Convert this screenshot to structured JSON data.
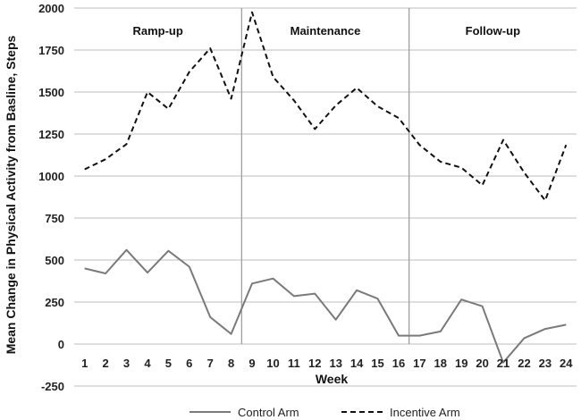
{
  "chart_data": {
    "type": "line",
    "ylabel": "Mean Change in Physical Activity from Basline, Steps",
    "xlabel": "Week",
    "ylim": [
      -250,
      2000
    ],
    "yticks": [
      -250,
      0,
      250,
      500,
      750,
      1000,
      1250,
      1500,
      1750,
      2000
    ],
    "grid": true,
    "legend": "bottom",
    "x": [
      1,
      2,
      3,
      4,
      5,
      6,
      7,
      8,
      9,
      10,
      11,
      12,
      13,
      14,
      15,
      16,
      17,
      18,
      19,
      20,
      21,
      22,
      23,
      24
    ],
    "phases": [
      {
        "label": "Ramp-up",
        "start": 0.5,
        "end": 8.5
      },
      {
        "label": "Maintenance",
        "start": 8.5,
        "end": 16.5
      },
      {
        "label": "Follow-up",
        "start": 16.5,
        "end": 24.5
      }
    ],
    "dividers": [
      8.5,
      16.5
    ],
    "series": [
      {
        "name": "Control Arm",
        "style": "solid",
        "color": "#7a7a7a",
        "values": [
          450,
          420,
          560,
          425,
          555,
          460,
          160,
          60,
          360,
          390,
          285,
          300,
          145,
          320,
          270,
          50,
          50,
          75,
          265,
          225,
          -110,
          35,
          90,
          115
        ]
      },
      {
        "name": "Incentive Arm",
        "style": "dashed",
        "color": "#111111",
        "values": [
          1040,
          1100,
          1190,
          1500,
          1400,
          1620,
          1760,
          1460,
          1975,
          1590,
          1450,
          1280,
          1420,
          1525,
          1415,
          1345,
          1185,
          1085,
          1050,
          945,
          1215,
          1020,
          855,
          1185
        ]
      }
    ]
  }
}
